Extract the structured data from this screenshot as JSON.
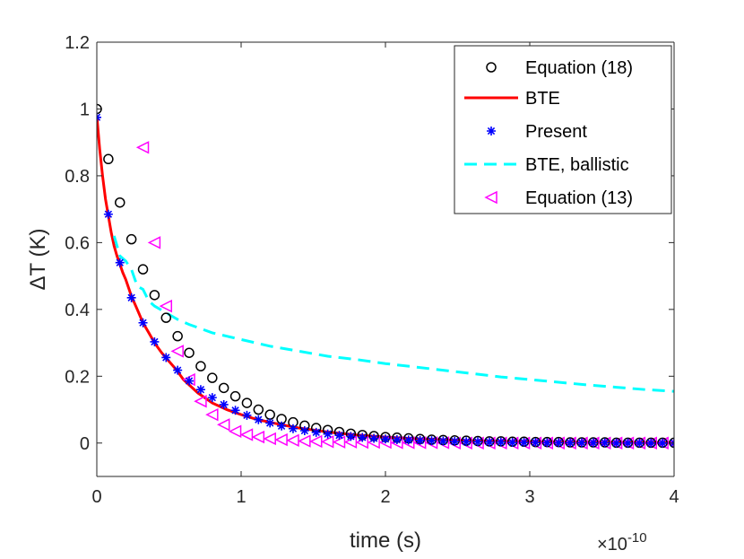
{
  "chart_data": {
    "type": "line",
    "title": "",
    "xlabel": "time (s)",
    "ylabel": "ΔT (K)",
    "x_multiplier_base": "×10",
    "x_multiplier_exp": "-10",
    "xlim": [
      0,
      4
    ],
    "ylim": [
      -0.1,
      1.2
    ],
    "xticks": [
      "0",
      "1",
      "2",
      "3",
      "4"
    ],
    "yticks": [
      "0",
      "0.2",
      "0.4",
      "0.6",
      "0.8",
      "1",
      "1.2"
    ],
    "grid": false,
    "legend_position": "top-right",
    "colors": {
      "eq18": "#000000",
      "bte": "#ff0000",
      "present": "#0000ff",
      "ballistic": "#00ffff",
      "eq13": "#ff00ff",
      "axis": "#262626"
    },
    "series": [
      {
        "name": "Equation (18)",
        "style": "circle-markers",
        "x": [
          0,
          0.08,
          0.16,
          0.24,
          0.32,
          0.4,
          0.48,
          0.56,
          0.64,
          0.72,
          0.8,
          0.88,
          0.96,
          1.04,
          1.12,
          1.2,
          1.28,
          1.36,
          1.44,
          1.52,
          1.6,
          1.68,
          1.76,
          1.84,
          1.92,
          2.0,
          2.08,
          2.16,
          2.24,
          2.32,
          2.4,
          2.48,
          2.56,
          2.64,
          2.72,
          2.8,
          2.88,
          2.96,
          3.04,
          3.12,
          3.2,
          3.28,
          3.36,
          3.44,
          3.52,
          3.6,
          3.68,
          3.76,
          3.84,
          3.92,
          4.0
        ],
        "y": [
          1.0,
          0.85,
          0.72,
          0.61,
          0.52,
          0.443,
          0.375,
          0.32,
          0.27,
          0.23,
          0.195,
          0.165,
          0.14,
          0.12,
          0.1,
          0.085,
          0.072,
          0.062,
          0.052,
          0.045,
          0.039,
          0.033,
          0.028,
          0.024,
          0.021,
          0.018,
          0.016,
          0.014,
          0.012,
          0.01,
          0.009,
          0.008,
          0.007,
          0.006,
          0.005,
          0.005,
          0.004,
          0.004,
          0.003,
          0.003,
          0.003,
          0.002,
          0.002,
          0.002,
          0.002,
          0.001,
          0.001,
          0.001,
          0.001,
          0.001,
          0.001
        ]
      },
      {
        "name": "BTE",
        "style": "solid-line",
        "x": [
          0,
          0.02,
          0.04,
          0.06,
          0.08,
          0.1,
          0.12,
          0.14,
          0.16,
          0.18,
          0.2,
          0.24,
          0.28,
          0.32,
          0.36,
          0.4,
          0.45,
          0.5,
          0.55,
          0.6,
          0.65,
          0.7,
          0.75,
          0.8,
          0.9,
          1.0,
          1.1,
          1.2,
          1.3,
          1.4,
          1.5,
          1.6,
          1.8,
          2.0,
          2.2,
          2.4,
          2.6,
          2.8,
          3.0,
          3.2,
          3.4,
          3.6,
          3.8,
          4.0
        ],
        "y": [
          0.98,
          0.88,
          0.8,
          0.73,
          0.68,
          0.63,
          0.59,
          0.56,
          0.535,
          0.51,
          0.49,
          0.44,
          0.4,
          0.36,
          0.33,
          0.3,
          0.27,
          0.245,
          0.22,
          0.19,
          0.17,
          0.15,
          0.135,
          0.12,
          0.1,
          0.085,
          0.072,
          0.062,
          0.053,
          0.045,
          0.039,
          0.033,
          0.024,
          0.018,
          0.013,
          0.01,
          0.007,
          0.005,
          0.004,
          0.003,
          0.002,
          0.002,
          0.001,
          0.001
        ]
      },
      {
        "name": "Present",
        "style": "star-markers",
        "x": [
          0,
          0.08,
          0.16,
          0.24,
          0.32,
          0.4,
          0.48,
          0.56,
          0.64,
          0.72,
          0.8,
          0.88,
          0.96,
          1.04,
          1.12,
          1.2,
          1.28,
          1.36,
          1.44,
          1.52,
          1.6,
          1.68,
          1.76,
          1.84,
          1.92,
          2.0,
          2.08,
          2.16,
          2.24,
          2.32,
          2.4,
          2.48,
          2.56,
          2.64,
          2.72,
          2.8,
          2.88,
          2.96,
          3.04,
          3.12,
          3.2,
          3.28,
          3.36,
          3.44,
          3.52,
          3.6,
          3.68,
          3.76,
          3.84,
          3.92,
          4.0
        ],
        "y": [
          0.975,
          0.685,
          0.54,
          0.435,
          0.36,
          0.303,
          0.256,
          0.218,
          0.186,
          0.16,
          0.136,
          0.115,
          0.098,
          0.083,
          0.07,
          0.06,
          0.051,
          0.043,
          0.037,
          0.032,
          0.027,
          0.023,
          0.02,
          0.017,
          0.014,
          0.012,
          0.01,
          0.009,
          0.008,
          0.007,
          0.006,
          0.005,
          0.004,
          0.004,
          0.003,
          0.003,
          0.002,
          0.002,
          0.002,
          0.001,
          0.001,
          0.001,
          0.001,
          0.001,
          0.001,
          0.0,
          0.0,
          0.0,
          0.0,
          0.0,
          0.0
        ]
      },
      {
        "name": "BTE, ballistic",
        "style": "dashed-line",
        "x": [
          0.12,
          0.16,
          0.2,
          0.24,
          0.28,
          0.32,
          0.36,
          0.4,
          0.48,
          0.56,
          0.64,
          0.8,
          1.0,
          1.2,
          1.4,
          1.6,
          1.8,
          2.0,
          2.2,
          2.4,
          2.6,
          2.8,
          3.0,
          3.2,
          3.4,
          3.6,
          3.8,
          4.0
        ],
        "y": [
          0.62,
          0.56,
          0.545,
          0.52,
          0.47,
          0.46,
          0.425,
          0.41,
          0.39,
          0.37,
          0.355,
          0.33,
          0.31,
          0.29,
          0.275,
          0.26,
          0.25,
          0.238,
          0.228,
          0.218,
          0.208,
          0.198,
          0.19,
          0.182,
          0.174,
          0.167,
          0.16,
          0.155
        ]
      },
      {
        "name": "Equation (13)",
        "style": "triangle-left-markers",
        "x": [
          0.32,
          0.4,
          0.48,
          0.56,
          0.64,
          0.72,
          0.8,
          0.88,
          0.96,
          1.04,
          1.12,
          1.2,
          1.28,
          1.36,
          1.44,
          1.52,
          1.6,
          1.68,
          1.76,
          1.84,
          1.92,
          2.0,
          2.08,
          2.16,
          2.24,
          2.32,
          2.4,
          2.48,
          2.56,
          2.64,
          2.72,
          2.8,
          2.88,
          2.96,
          3.04,
          3.12,
          3.2,
          3.28,
          3.36,
          3.44,
          3.52,
          3.6,
          3.68,
          3.76,
          3.84,
          3.92,
          4.0
        ],
        "y": [
          0.885,
          0.6,
          0.41,
          0.275,
          0.19,
          0.125,
          0.085,
          0.055,
          0.035,
          0.025,
          0.018,
          0.013,
          0.01,
          0.008,
          0.006,
          0.005,
          0.004,
          0.003,
          0.003,
          0.002,
          0.002,
          0.002,
          0.001,
          0.001,
          0.001,
          0.001,
          0.001,
          0.0,
          0.0,
          0.0,
          0.0,
          0.0,
          0.0,
          0.0,
          0.0,
          0.0,
          0.0,
          0.0,
          0.0,
          0.0,
          0.0,
          0.0,
          0.0,
          0.0,
          0.0,
          0.0,
          0.0
        ]
      }
    ]
  }
}
